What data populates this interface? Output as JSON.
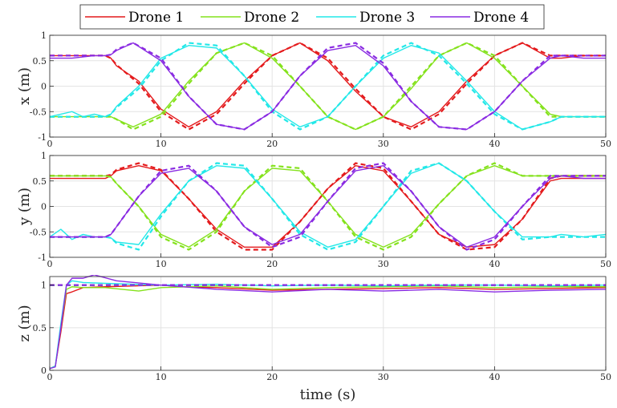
{
  "legend": [
    {
      "name": "Drone 1",
      "color": "#e41a1c"
    },
    {
      "name": "Drone 2",
      "color": "#84e21c"
    },
    {
      "name": "Drone 3",
      "color": "#22e8e8"
    },
    {
      "name": "Drone 4",
      "color": "#8a2be2"
    }
  ],
  "chart_data": [
    {
      "type": "line",
      "ylabel": "x (m)",
      "xlabel": "",
      "xlim": [
        0,
        50
      ],
      "ylim": [
        -1,
        1
      ],
      "xticks": [
        0,
        10,
        20,
        30,
        40,
        50
      ],
      "yticks": [
        -1,
        -0.5,
        0,
        0.5,
        1
      ],
      "grid": true,
      "series": [
        {
          "name": "Drone 1",
          "x": [
            0,
            2,
            4,
            5,
            5.5,
            6,
            8,
            10,
            12.5,
            15,
            17.5,
            20,
            22.5,
            25,
            27.5,
            30,
            32.5,
            35,
            37.5,
            40,
            42.5,
            45,
            46,
            48,
            50
          ],
          "y": [
            0.6,
            0.6,
            0.6,
            0.6,
            0.55,
            0.4,
            0.1,
            -0.45,
            -0.8,
            -0.5,
            0.1,
            0.6,
            0.85,
            0.5,
            -0.1,
            -0.6,
            -0.8,
            -0.5,
            0.1,
            0.6,
            0.85,
            0.55,
            0.55,
            0.6,
            0.6
          ],
          "ref_y": [
            0.6,
            0.6,
            0.6,
            0.6,
            0.55,
            0.42,
            0.05,
            -0.5,
            -0.85,
            -0.55,
            0.05,
            0.6,
            0.85,
            0.55,
            -0.05,
            -0.6,
            -0.85,
            -0.55,
            0.05,
            0.6,
            0.85,
            0.6,
            0.6,
            0.6,
            0.6
          ]
        },
        {
          "name": "Drone 2",
          "x": [
            0,
            2,
            4,
            5,
            5.5,
            6,
            7.5,
            10,
            12.5,
            15,
            17.5,
            20,
            22.5,
            25,
            27.5,
            30,
            32.5,
            35,
            37.5,
            40,
            42.5,
            45,
            46,
            48,
            50
          ],
          "y": [
            -0.6,
            -0.6,
            -0.6,
            -0.6,
            -0.6,
            -0.65,
            -0.8,
            -0.55,
            0.1,
            0.65,
            0.85,
            0.55,
            0.0,
            -0.6,
            -0.85,
            -0.6,
            -0.05,
            0.6,
            0.85,
            0.55,
            0.0,
            -0.55,
            -0.6,
            -0.6,
            -0.6
          ],
          "ref_y": [
            -0.6,
            -0.6,
            -0.6,
            -0.6,
            -0.6,
            -0.65,
            -0.85,
            -0.6,
            0.05,
            0.65,
            0.85,
            0.6,
            0.0,
            -0.6,
            -0.85,
            -0.6,
            0.0,
            0.6,
            0.85,
            0.6,
            0.0,
            -0.6,
            -0.6,
            -0.6,
            -0.6
          ]
        },
        {
          "name": "Drone 3",
          "x": [
            0,
            1,
            2,
            3,
            4,
            5,
            5.5,
            6,
            8,
            10,
            12.5,
            15,
            17.5,
            20,
            22.5,
            25,
            27.5,
            30,
            32.5,
            35,
            37.5,
            40,
            42.5,
            45,
            46,
            48,
            50
          ],
          "y": [
            -0.6,
            -0.55,
            -0.5,
            -0.6,
            -0.55,
            -0.6,
            -0.55,
            -0.4,
            0.0,
            0.55,
            0.8,
            0.75,
            0.2,
            -0.45,
            -0.8,
            -0.6,
            0.0,
            0.55,
            0.8,
            0.65,
            0.1,
            -0.5,
            -0.85,
            -0.7,
            -0.6,
            -0.6,
            -0.6
          ],
          "ref_y": [
            -0.6,
            -0.6,
            -0.6,
            -0.6,
            -0.6,
            -0.6,
            -0.55,
            -0.42,
            -0.05,
            0.5,
            0.85,
            0.8,
            0.2,
            -0.5,
            -0.85,
            -0.6,
            0.0,
            0.6,
            0.85,
            0.6,
            0.05,
            -0.55,
            -0.85,
            -0.7,
            -0.6,
            -0.6,
            -0.6
          ]
        },
        {
          "name": "Drone 4",
          "x": [
            0,
            2,
            4,
            5,
            5.5,
            6,
            7.5,
            10,
            12.5,
            15,
            17.5,
            20,
            22.5,
            25,
            27.5,
            30,
            32.5,
            35,
            37.5,
            40,
            42.5,
            45,
            46,
            48,
            50
          ],
          "y": [
            0.55,
            0.55,
            0.6,
            0.6,
            0.62,
            0.7,
            0.85,
            0.5,
            -0.2,
            -0.75,
            -0.85,
            -0.5,
            0.2,
            0.7,
            0.8,
            0.4,
            -0.3,
            -0.8,
            -0.85,
            -0.5,
            0.1,
            0.55,
            0.6,
            0.55,
            0.55
          ],
          "ref_y": [
            0.6,
            0.6,
            0.6,
            0.6,
            0.62,
            0.72,
            0.85,
            0.55,
            -0.2,
            -0.75,
            -0.85,
            -0.5,
            0.2,
            0.75,
            0.85,
            0.45,
            -0.3,
            -0.8,
            -0.85,
            -0.5,
            0.1,
            0.6,
            0.6,
            0.6,
            0.6
          ]
        }
      ]
    },
    {
      "type": "line",
      "ylabel": "y (m)",
      "xlabel": "",
      "xlim": [
        0,
        50
      ],
      "ylim": [
        -1,
        1
      ],
      "xticks": [
        0,
        10,
        20,
        30,
        40,
        50
      ],
      "yticks": [
        -1,
        -0.5,
        0,
        0.5,
        1
      ],
      "grid": true,
      "series": [
        {
          "name": "Drone 1",
          "x": [
            0,
            2,
            4,
            5,
            5.5,
            6,
            8,
            10,
            12.5,
            15,
            17.5,
            20,
            22.5,
            25,
            27.5,
            30,
            32.5,
            35,
            37.5,
            40,
            42.5,
            45,
            46,
            48,
            50
          ],
          "y": [
            0.55,
            0.55,
            0.55,
            0.55,
            0.6,
            0.7,
            0.8,
            0.7,
            0.15,
            -0.45,
            -0.8,
            -0.8,
            -0.3,
            0.35,
            0.8,
            0.7,
            0.1,
            -0.55,
            -0.8,
            -0.75,
            -0.25,
            0.5,
            0.55,
            0.55,
            0.55
          ],
          "ref_y": [
            0.6,
            0.6,
            0.6,
            0.6,
            0.62,
            0.72,
            0.85,
            0.72,
            0.15,
            -0.5,
            -0.85,
            -0.85,
            -0.3,
            0.35,
            0.85,
            0.75,
            0.1,
            -0.55,
            -0.85,
            -0.8,
            -0.25,
            0.55,
            0.6,
            0.6,
            0.6
          ]
        },
        {
          "name": "Drone 2",
          "x": [
            0,
            2,
            4,
            5,
            5.5,
            6,
            8,
            10,
            12.5,
            15,
            17.5,
            20,
            22.5,
            25,
            27.5,
            30,
            32.5,
            35,
            37.5,
            40,
            42.5,
            45,
            46,
            48,
            50
          ],
          "y": [
            0.6,
            0.6,
            0.6,
            0.6,
            0.58,
            0.45,
            0.0,
            -0.55,
            -0.8,
            -0.45,
            0.3,
            0.75,
            0.7,
            0.1,
            -0.55,
            -0.8,
            -0.55,
            0.05,
            0.6,
            0.8,
            0.6,
            0.6,
            0.6,
            0.6,
            0.6
          ],
          "ref_y": [
            0.6,
            0.6,
            0.6,
            0.6,
            0.58,
            0.45,
            0.0,
            -0.6,
            -0.85,
            -0.5,
            0.3,
            0.8,
            0.75,
            0.1,
            -0.6,
            -0.85,
            -0.6,
            0.05,
            0.6,
            0.85,
            0.6,
            0.6,
            0.6,
            0.6,
            0.6
          ]
        },
        {
          "name": "Drone 3",
          "x": [
            0,
            1,
            2,
            3,
            4,
            5,
            5.5,
            6,
            8,
            10,
            12.5,
            15,
            17.5,
            20,
            22.5,
            25,
            27.5,
            30,
            32.5,
            35,
            37.5,
            40,
            42.5,
            45,
            46,
            48,
            50
          ],
          "y": [
            -0.6,
            -0.45,
            -0.65,
            -0.55,
            -0.6,
            -0.6,
            -0.62,
            -0.7,
            -0.75,
            -0.15,
            0.5,
            0.8,
            0.75,
            0.15,
            -0.5,
            -0.8,
            -0.65,
            0.0,
            0.65,
            0.85,
            0.5,
            -0.1,
            -0.6,
            -0.6,
            -0.55,
            -0.6,
            -0.55
          ],
          "ref_y": [
            -0.6,
            -0.6,
            -0.6,
            -0.6,
            -0.6,
            -0.6,
            -0.62,
            -0.72,
            -0.85,
            -0.2,
            0.5,
            0.85,
            0.8,
            0.15,
            -0.55,
            -0.85,
            -0.7,
            0.0,
            0.7,
            0.85,
            0.5,
            -0.1,
            -0.65,
            -0.6,
            -0.6,
            -0.6,
            -0.6
          ]
        },
        {
          "name": "Drone 4",
          "x": [
            0,
            2,
            4,
            5,
            5.5,
            6,
            8,
            10,
            12.5,
            15,
            17.5,
            20,
            22.5,
            25,
            27.5,
            30,
            32.5,
            35,
            37.5,
            40,
            42.5,
            45,
            46,
            48,
            50
          ],
          "y": [
            -0.6,
            -0.6,
            -0.6,
            -0.6,
            -0.55,
            -0.4,
            0.2,
            0.65,
            0.75,
            0.3,
            -0.4,
            -0.75,
            -0.55,
            0.1,
            0.7,
            0.8,
            0.3,
            -0.4,
            -0.8,
            -0.6,
            0.0,
            0.55,
            0.6,
            0.55,
            0.55
          ],
          "ref_y": [
            -0.6,
            -0.6,
            -0.6,
            -0.6,
            -0.55,
            -0.4,
            0.2,
            0.7,
            0.8,
            0.3,
            -0.4,
            -0.8,
            -0.6,
            0.1,
            0.75,
            0.85,
            0.3,
            -0.4,
            -0.85,
            -0.65,
            0.0,
            0.6,
            0.6,
            0.6,
            0.6
          ]
        }
      ]
    },
    {
      "type": "line",
      "ylabel": "z (m)",
      "xlabel": "time (s)",
      "xlim": [
        0,
        50
      ],
      "ylim": [
        0,
        1.1
      ],
      "xticks": [
        0,
        10,
        20,
        30,
        40,
        50
      ],
      "yticks": [
        0,
        0.5,
        1
      ],
      "grid": true,
      "series": [
        {
          "name": "Drone 1",
          "x": [
            0,
            0.5,
            1,
            1.5,
            2,
            3,
            5,
            10,
            12,
            15,
            20,
            25,
            30,
            35,
            40,
            45,
            50
          ],
          "y": [
            0.02,
            0.05,
            0.45,
            0.9,
            0.92,
            0.97,
            0.98,
            1.0,
            0.98,
            0.97,
            0.94,
            0.95,
            0.96,
            0.97,
            0.95,
            0.96,
            0.97
          ],
          "ref_y": [
            1.0,
            1.0,
            1.0,
            1.0,
            1.0,
            1.0,
            1.0,
            1.0,
            1.0,
            1.0,
            1.0,
            1.0,
            1.0,
            1.0,
            1.0,
            1.0,
            1.0
          ]
        },
        {
          "name": "Drone 2",
          "x": [
            0,
            0.5,
            1,
            1.5,
            2,
            3,
            5,
            8,
            10,
            15,
            20,
            25,
            30,
            35,
            40,
            45,
            50
          ],
          "y": [
            0.02,
            0.05,
            0.5,
            0.95,
            0.98,
            0.97,
            0.97,
            0.93,
            0.97,
            0.99,
            0.95,
            0.97,
            0.98,
            0.99,
            0.97,
            0.98,
            0.98
          ],
          "ref_y": [
            1.0,
            1.0,
            1.0,
            1.0,
            1.0,
            1.0,
            1.0,
            1.0,
            1.0,
            1.0,
            1.0,
            1.0,
            1.0,
            1.0,
            1.0,
            1.0,
            1.0
          ]
        },
        {
          "name": "Drone 3",
          "x": [
            0,
            0.5,
            1,
            1.5,
            2,
            3,
            5,
            10,
            15,
            20,
            25,
            30,
            35,
            40,
            45,
            50
          ],
          "y": [
            0.02,
            0.05,
            0.55,
            1.0,
            1.05,
            1.03,
            1.02,
            1.0,
            1.01,
            0.99,
            1.0,
            0.99,
            1.0,
            1.0,
            0.99,
            1.0
          ],
          "ref_y": [
            1.0,
            1.0,
            1.0,
            1.0,
            1.0,
            1.0,
            1.0,
            1.0,
            1.0,
            1.0,
            1.0,
            1.0,
            1.0,
            1.0,
            1.0,
            1.0
          ]
        },
        {
          "name": "Drone 4",
          "x": [
            0,
            0.5,
            1,
            1.5,
            2,
            3,
            4,
            6,
            10,
            15,
            20,
            25,
            30,
            35,
            40,
            45,
            50
          ],
          "y": [
            0.02,
            0.04,
            0.5,
            1.0,
            1.08,
            1.08,
            1.12,
            1.05,
            1.0,
            0.95,
            0.92,
            0.95,
            0.93,
            0.95,
            0.92,
            0.94,
            0.95
          ],
          "ref_y": [
            1.0,
            1.0,
            1.0,
            1.0,
            1.0,
            1.0,
            1.0,
            1.0,
            1.0,
            1.0,
            1.0,
            1.0,
            1.0,
            1.0,
            1.0,
            1.0,
            1.0
          ]
        }
      ]
    }
  ]
}
